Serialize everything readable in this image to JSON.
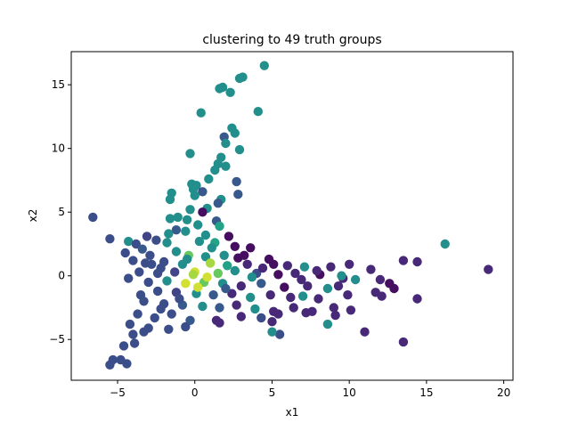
{
  "chart_data": {
    "type": "scatter",
    "title": "clustering to 49 truth groups",
    "xlabel": "x1",
    "ylabel": "x2",
    "xlim": [
      -8.0,
      20.6
    ],
    "ylim": [
      -8.2,
      17.6
    ],
    "xticks": [
      -5,
      0,
      5,
      10,
      15,
      20
    ],
    "yticks": [
      -5,
      0,
      5,
      10,
      15
    ],
    "grid": false,
    "legend": "none",
    "colormap": "viridis",
    "points": [
      [
        4.5,
        16.5,
        0.62
      ],
      [
        1.8,
        14.8,
        0.62
      ],
      [
        1.6,
        14.7,
        0.62
      ],
      [
        2.3,
        14.4,
        0.62
      ],
      [
        3.1,
        15.6,
        0.62
      ],
      [
        2.9,
        15.5,
        0.62
      ],
      [
        0.4,
        12.8,
        0.62
      ],
      [
        4.1,
        12.9,
        0.62
      ],
      [
        2.4,
        11.6,
        0.62
      ],
      [
        2.6,
        11.2,
        0.62
      ],
      [
        1.9,
        10.9,
        0.35
      ],
      [
        2.0,
        10.4,
        0.62
      ],
      [
        2.9,
        9.9,
        0.62
      ],
      [
        -0.3,
        9.6,
        0.62
      ],
      [
        1.7,
        9.3,
        0.62
      ],
      [
        1.5,
        8.8,
        0.62
      ],
      [
        2.0,
        8.6,
        0.62
      ],
      [
        1.3,
        8.3,
        0.62
      ],
      [
        0.9,
        7.6,
        0.62
      ],
      [
        2.7,
        7.4,
        0.35
      ],
      [
        -0.2,
        7.2,
        0.62
      ],
      [
        0.1,
        7.1,
        0.62
      ],
      [
        -0.1,
        6.8,
        0.62
      ],
      [
        0.5,
        6.6,
        0.35
      ],
      [
        -1.5,
        6.5,
        0.62
      ],
      [
        2.8,
        6.4,
        0.35
      ],
      [
        0.0,
        6.3,
        0.62
      ],
      [
        -1.6,
        6.0,
        0.62
      ],
      [
        1.7,
        6.0,
        0.62
      ],
      [
        1.5,
        5.7,
        0.35
      ],
      [
        -0.3,
        5.2,
        0.62
      ],
      [
        0.8,
        5.3,
        0.62
      ],
      [
        0.5,
        5.0,
        0.05
      ],
      [
        -1.6,
        4.5,
        0.62
      ],
      [
        -1.1,
        4.6,
        0.62
      ],
      [
        -0.5,
        4.4,
        0.62
      ],
      [
        1.4,
        4.3,
        0.35
      ],
      [
        -6.6,
        4.6,
        0.3
      ],
      [
        0.2,
        4.0,
        0.62
      ],
      [
        1.6,
        3.9,
        0.72
      ],
      [
        -1.2,
        3.6,
        0.35
      ],
      [
        -0.6,
        3.5,
        0.62
      ],
      [
        0.7,
        3.2,
        0.62
      ],
      [
        2.2,
        3.1,
        0.05
      ],
      [
        -3.1,
        3.1,
        0.25
      ],
      [
        -5.5,
        2.9,
        0.3
      ],
      [
        -4.3,
        2.7,
        0.62
      ],
      [
        -3.8,
        2.5,
        0.3
      ],
      [
        -2.5,
        2.8,
        0.3
      ],
      [
        -1.8,
        2.6,
        0.62
      ],
      [
        0.3,
        2.7,
        0.62
      ],
      [
        1.3,
        2.6,
        0.72
      ],
      [
        2.6,
        2.3,
        0.05
      ],
      [
        3.6,
        2.2,
        0.05
      ],
      [
        16.2,
        2.5,
        0.62
      ],
      [
        -4.5,
        1.8,
        0.3
      ],
      [
        -3.4,
        2.1,
        0.35
      ],
      [
        -2.9,
        1.6,
        0.3
      ],
      [
        -1.2,
        1.9,
        0.62
      ],
      [
        -0.4,
        1.6,
        0.85
      ],
      [
        0.7,
        1.5,
        0.62
      ],
      [
        1.9,
        1.6,
        0.62
      ],
      [
        2.8,
        1.4,
        0.05
      ],
      [
        4.8,
        1.3,
        0.05
      ],
      [
        -4.0,
        1.2,
        0.3
      ],
      [
        -3.2,
        1.0,
        0.3
      ],
      [
        -2.0,
        1.1,
        0.3
      ],
      [
        -0.8,
        0.9,
        0.62
      ],
      [
        1.0,
        1.0,
        0.92
      ],
      [
        2.1,
        0.8,
        0.72
      ],
      [
        3.4,
        0.9,
        0.15
      ],
      [
        5.1,
        0.9,
        0.05
      ],
      [
        6.0,
        0.8,
        0.15
      ],
      [
        7.1,
        0.7,
        0.62
      ],
      [
        8.8,
        0.7,
        0.15
      ],
      [
        10.0,
        0.9,
        0.15
      ],
      [
        11.4,
        0.5,
        0.15
      ],
      [
        13.5,
        1.2,
        0.15
      ],
      [
        14.4,
        1.1,
        0.15
      ],
      [
        19.0,
        0.5,
        0.15
      ],
      [
        -3.6,
        0.3,
        0.3
      ],
      [
        -2.4,
        0.2,
        0.3
      ],
      [
        -1.3,
        0.3,
        0.25
      ],
      [
        0.0,
        0.3,
        0.96
      ],
      [
        1.5,
        0.2,
        0.85
      ],
      [
        2.6,
        0.4,
        0.62
      ],
      [
        4.0,
        0.2,
        0.3
      ],
      [
        5.4,
        0.1,
        0.05
      ],
      [
        6.5,
        0.2,
        0.15
      ],
      [
        8.1,
        0.1,
        0.05
      ],
      [
        9.6,
        -0.2,
        0.15
      ],
      [
        10.4,
        -0.3,
        0.62
      ],
      [
        12.0,
        -0.3,
        0.15
      ],
      [
        12.6,
        -0.6,
        0.05
      ],
      [
        -4.3,
        -0.2,
        0.3
      ],
      [
        -3.0,
        -0.5,
        0.3
      ],
      [
        -1.8,
        -0.4,
        0.62
      ],
      [
        -0.6,
        -0.6,
        0.96
      ],
      [
        0.6,
        -0.5,
        0.85
      ],
      [
        1.8,
        -0.6,
        0.62
      ],
      [
        3.0,
        -0.8,
        0.15
      ],
      [
        4.3,
        -0.6,
        0.35
      ],
      [
        5.8,
        -0.9,
        0.05
      ],
      [
        7.3,
        -0.8,
        0.15
      ],
      [
        8.6,
        -1.0,
        0.62
      ],
      [
        9.3,
        -0.8,
        0.15
      ],
      [
        11.7,
        -1.3,
        0.15
      ],
      [
        12.9,
        -1.0,
        0.05
      ],
      [
        -2.4,
        -1.2,
        0.3
      ],
      [
        -1.2,
        -1.3,
        0.25
      ],
      [
        0.1,
        -1.4,
        0.62
      ],
      [
        1.2,
        -1.5,
        0.35
      ],
      [
        2.4,
        -1.4,
        0.15
      ],
      [
        3.6,
        -1.7,
        0.62
      ],
      [
        4.9,
        -1.5,
        0.15
      ],
      [
        6.2,
        -1.7,
        0.15
      ],
      [
        7.0,
        -1.6,
        0.62
      ],
      [
        8.0,
        -1.8,
        0.15
      ],
      [
        9.9,
        -1.5,
        0.15
      ],
      [
        12.1,
        -1.6,
        0.15
      ],
      [
        14.4,
        -1.8,
        0.15
      ],
      [
        -3.3,
        -2.0,
        0.3
      ],
      [
        -2.0,
        -2.2,
        0.3
      ],
      [
        -0.8,
        -2.3,
        0.35
      ],
      [
        0.5,
        -2.4,
        0.62
      ],
      [
        1.6,
        -2.5,
        0.35
      ],
      [
        2.7,
        -2.3,
        0.15
      ],
      [
        3.9,
        -2.6,
        0.62
      ],
      [
        5.1,
        -2.8,
        0.15
      ],
      [
        6.4,
        -2.5,
        0.15
      ],
      [
        7.6,
        -2.8,
        0.15
      ],
      [
        9.0,
        -2.5,
        0.15
      ],
      [
        10.1,
        -2.7,
        0.15
      ],
      [
        -3.7,
        -3.0,
        0.3
      ],
      [
        -2.6,
        -3.3,
        0.3
      ],
      [
        -1.5,
        -3.0,
        0.3
      ],
      [
        -0.3,
        -3.5,
        0.35
      ],
      [
        1.4,
        -3.5,
        0.15
      ],
      [
        3.0,
        -3.2,
        0.15
      ],
      [
        4.3,
        -3.3,
        0.3
      ],
      [
        5.4,
        -3.0,
        0.15
      ],
      [
        7.2,
        -2.9,
        0.15
      ],
      [
        9.1,
        -3.1,
        0.15
      ],
      [
        -4.2,
        -3.8,
        0.3
      ],
      [
        -3.0,
        -4.1,
        0.3
      ],
      [
        -1.7,
        -4.2,
        0.3
      ],
      [
        -0.6,
        -4.0,
        0.3
      ],
      [
        1.6,
        -3.7,
        0.15
      ],
      [
        5.0,
        -3.6,
        0.15
      ],
      [
        8.6,
        -3.8,
        0.62
      ],
      [
        -4.0,
        -4.6,
        0.3
      ],
      [
        -3.3,
        -4.4,
        0.3
      ],
      [
        5.5,
        -4.6,
        0.3
      ],
      [
        5.0,
        -4.4,
        0.62
      ],
      [
        11.0,
        -4.4,
        0.15
      ],
      [
        13.5,
        -5.2,
        0.15
      ],
      [
        -4.6,
        -5.5,
        0.3
      ],
      [
        -3.9,
        -5.3,
        0.3
      ],
      [
        -4.8,
        -6.6,
        0.3
      ],
      [
        -5.3,
        -6.6,
        0.3
      ],
      [
        -4.4,
        -6.9,
        0.3
      ],
      [
        -5.5,
        -7.0,
        0.3
      ],
      [
        -2.2,
        -2.6,
        0.3
      ],
      [
        -1.0,
        -1.8,
        0.3
      ],
      [
        0.2,
        -0.9,
        0.96
      ],
      [
        -0.1,
        0.1,
        0.92
      ],
      [
        0.8,
        -0.1,
        0.96
      ],
      [
        -0.5,
        1.3,
        0.62
      ],
      [
        -1.7,
        3.3,
        0.62
      ],
      [
        -2.2,
        0.6,
        0.3
      ],
      [
        -3.5,
        -1.5,
        0.3
      ],
      [
        -2.8,
        0.9,
        0.3
      ],
      [
        1.1,
        2.2,
        0.62
      ],
      [
        3.2,
        1.6,
        0.05
      ],
      [
        4.4,
        0.6,
        0.15
      ],
      [
        3.7,
        -0.1,
        0.62
      ],
      [
        2.0,
        -1.0,
        0.35
      ],
      [
        6.9,
        -0.3,
        0.15
      ],
      [
        7.9,
        0.4,
        0.15
      ],
      [
        9.5,
        0.0,
        0.62
      ]
    ]
  }
}
